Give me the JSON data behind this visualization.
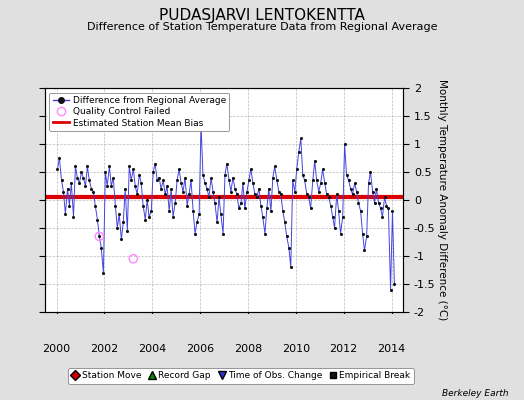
{
  "title": "PUDASJARVI LENTOKENTTA",
  "subtitle": "Difference of Station Temperature Data from Regional Average",
  "ylabel": "Monthly Temperature Anomaly Difference (°C)",
  "xlabel_credit": "Berkeley Earth",
  "ylim": [
    -2,
    2
  ],
  "xlim": [
    1999.5,
    2014.5
  ],
  "xticks": [
    2000,
    2002,
    2004,
    2006,
    2008,
    2010,
    2012,
    2014
  ],
  "yticks": [
    -2,
    -1.5,
    -1,
    -0.5,
    0,
    0.5,
    1,
    1.5,
    2
  ],
  "bias_value": 0.05,
  "line_color": "#4444dd",
  "dot_color": "#111111",
  "bias_color": "#dd0000",
  "background_color": "#e0e0e0",
  "plot_bg_color": "#ffffff",
  "qc_fail_color": "#ff88ff",
  "legend1_items": [
    {
      "label": "Difference from Regional Average"
    },
    {
      "label": "Quality Control Failed"
    },
    {
      "label": "Estimated Station Mean Bias"
    }
  ],
  "legend2_items": [
    {
      "label": "Station Move",
      "color": "#cc0000",
      "marker": "D"
    },
    {
      "label": "Record Gap",
      "color": "#008800",
      "marker": "^"
    },
    {
      "label": "Time of Obs. Change",
      "color": "#3333cc",
      "marker": "v"
    },
    {
      "label": "Empirical Break",
      "color": "#111111",
      "marker": "s"
    }
  ],
  "times": [
    2000.04,
    2000.12,
    2000.21,
    2000.29,
    2000.37,
    2000.46,
    2000.54,
    2000.62,
    2000.71,
    2000.79,
    2000.87,
    2000.96,
    2001.04,
    2001.12,
    2001.21,
    2001.29,
    2001.37,
    2001.46,
    2001.54,
    2001.62,
    2001.71,
    2001.79,
    2001.87,
    2001.96,
    2002.04,
    2002.12,
    2002.21,
    2002.29,
    2002.37,
    2002.46,
    2002.54,
    2002.62,
    2002.71,
    2002.79,
    2002.87,
    2002.96,
    2003.04,
    2003.12,
    2003.21,
    2003.29,
    2003.37,
    2003.46,
    2003.54,
    2003.62,
    2003.71,
    2003.79,
    2003.87,
    2003.96,
    2004.04,
    2004.12,
    2004.21,
    2004.29,
    2004.37,
    2004.46,
    2004.54,
    2004.62,
    2004.71,
    2004.79,
    2004.87,
    2004.96,
    2005.04,
    2005.12,
    2005.21,
    2005.29,
    2005.37,
    2005.46,
    2005.54,
    2005.62,
    2005.71,
    2005.79,
    2005.87,
    2005.96,
    2006.04,
    2006.12,
    2006.21,
    2006.29,
    2006.37,
    2006.46,
    2006.54,
    2006.62,
    2006.71,
    2006.79,
    2006.87,
    2006.96,
    2007.04,
    2007.12,
    2007.21,
    2007.29,
    2007.37,
    2007.46,
    2007.54,
    2007.62,
    2007.71,
    2007.79,
    2007.87,
    2007.96,
    2008.04,
    2008.12,
    2008.21,
    2008.29,
    2008.37,
    2008.46,
    2008.54,
    2008.62,
    2008.71,
    2008.79,
    2008.87,
    2008.96,
    2009.04,
    2009.12,
    2009.21,
    2009.29,
    2009.37,
    2009.46,
    2009.54,
    2009.62,
    2009.71,
    2009.79,
    2009.87,
    2009.96,
    2010.04,
    2010.12,
    2010.21,
    2010.29,
    2010.37,
    2010.46,
    2010.54,
    2010.62,
    2010.71,
    2010.79,
    2010.87,
    2010.96,
    2011.04,
    2011.12,
    2011.21,
    2011.29,
    2011.37,
    2011.46,
    2011.54,
    2011.62,
    2011.71,
    2011.79,
    2011.87,
    2011.96,
    2012.04,
    2012.12,
    2012.21,
    2012.29,
    2012.37,
    2012.46,
    2012.54,
    2012.62,
    2012.71,
    2012.79,
    2012.87,
    2012.96,
    2013.04,
    2013.12,
    2013.21,
    2013.29,
    2013.37,
    2013.46,
    2013.54,
    2013.62,
    2013.71,
    2013.79,
    2013.87,
    2013.96,
    2014.04,
    2014.12
  ],
  "values": [
    0.55,
    0.75,
    0.35,
    0.15,
    -0.25,
    0.2,
    -0.1,
    0.3,
    -0.3,
    0.6,
    0.4,
    0.3,
    0.5,
    0.4,
    0.25,
    0.6,
    0.35,
    0.2,
    0.15,
    -0.1,
    -0.35,
    -0.65,
    -0.85,
    -1.3,
    0.5,
    0.25,
    0.6,
    0.25,
    0.4,
    -0.1,
    -0.5,
    -0.25,
    -0.7,
    -0.4,
    0.2,
    -0.55,
    0.6,
    0.35,
    0.55,
    0.25,
    0.1,
    0.45,
    0.3,
    -0.1,
    -0.35,
    0.0,
    -0.3,
    -0.2,
    0.5,
    0.65,
    0.35,
    0.4,
    0.2,
    0.35,
    0.1,
    0.25,
    -0.2,
    0.2,
    -0.3,
    -0.05,
    0.35,
    0.55,
    0.3,
    0.15,
    0.4,
    -0.1,
    0.1,
    0.35,
    -0.2,
    -0.6,
    -0.4,
    -0.25,
    1.35,
    0.45,
    0.3,
    0.2,
    0.05,
    0.4,
    0.15,
    -0.05,
    -0.4,
    0.05,
    -0.25,
    -0.6,
    0.45,
    0.65,
    0.35,
    0.15,
    0.4,
    0.2,
    0.1,
    -0.15,
    -0.05,
    0.3,
    -0.15,
    0.15,
    0.35,
    0.55,
    0.3,
    0.1,
    0.05,
    0.2,
    -0.1,
    -0.3,
    -0.6,
    -0.15,
    0.2,
    -0.2,
    0.4,
    0.6,
    0.35,
    0.15,
    0.1,
    -0.2,
    -0.4,
    -0.65,
    -0.85,
    -1.2,
    0.35,
    0.15,
    0.55,
    0.85,
    1.1,
    0.45,
    0.35,
    0.1,
    0.05,
    -0.15,
    0.35,
    0.7,
    0.35,
    0.15,
    0.3,
    0.55,
    0.3,
    0.1,
    0.05,
    -0.1,
    -0.3,
    -0.5,
    0.1,
    -0.2,
    -0.6,
    -0.3,
    1.0,
    0.45,
    0.35,
    0.2,
    0.1,
    0.3,
    0.15,
    -0.05,
    -0.2,
    -0.6,
    -0.9,
    -0.65,
    0.3,
    0.5,
    0.15,
    -0.05,
    0.2,
    -0.05,
    -0.15,
    -0.3,
    0.05,
    -0.1,
    -0.15,
    -1.6,
    -0.2,
    -1.5
  ],
  "qc_fail_times": [
    2001.79,
    2003.21
  ],
  "qc_fail_values": [
    -0.65,
    -1.05
  ],
  "title_fontsize": 11,
  "subtitle_fontsize": 8,
  "tick_fontsize": 8,
  "ylabel_fontsize": 7.5
}
